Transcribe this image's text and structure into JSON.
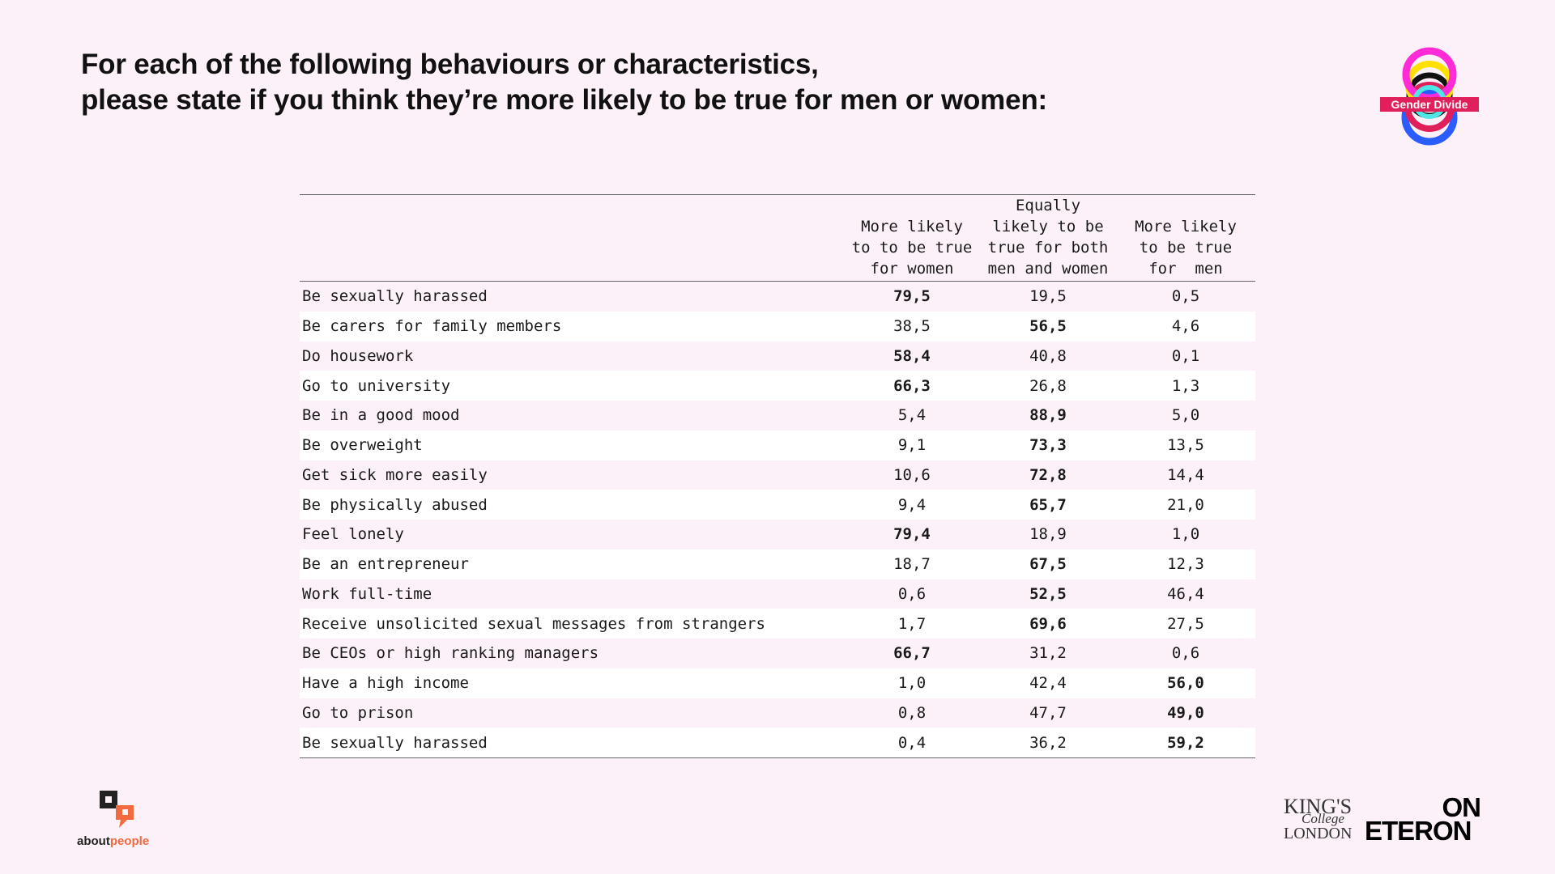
{
  "title": {
    "line1": "For each of the following behaviours or characteristics,",
    "line2": "please state if you think they’re more likely to be true for men or women:"
  },
  "badge": {
    "label": "Gender Divide",
    "icon": "gender-divide-rings-icon",
    "colors": [
      "#ff2bd6",
      "#ffe100",
      "#1e4fff",
      "#e0205a",
      "#50e6e6"
    ]
  },
  "table": {
    "headers": [
      "",
      "More likely\nto to be true\nfor women",
      "Equally\nlikely to be\ntrue for both\nmen and women",
      "More likely\nto be true\nfor  men"
    ],
    "rows": [
      {
        "label": "Be sexually harassed",
        "women": "79,5",
        "both": "19,5",
        "men": "0,5",
        "bold": "women"
      },
      {
        "label": "Be carers for family members",
        "women": "38,5",
        "both": "56,5",
        "men": "4,6",
        "bold": "both"
      },
      {
        "label": "Do housework",
        "women": "58,4",
        "both": "40,8",
        "men": "0,1",
        "bold": "women"
      },
      {
        "label": "Go to university",
        "women": "66,3",
        "both": "26,8",
        "men": "1,3",
        "bold": "women"
      },
      {
        "label": "Be in a good mood",
        "women": "5,4",
        "both": "88,9",
        "men": "5,0",
        "bold": "both"
      },
      {
        "label": "Be overweight",
        "women": "9,1",
        "both": "73,3",
        "men": "13,5",
        "bold": "both"
      },
      {
        "label": "Get sick more easily",
        "women": "10,6",
        "both": "72,8",
        "men": "14,4",
        "bold": "both"
      },
      {
        "label": "Be physically abused",
        "women": "9,4",
        "both": "65,7",
        "men": "21,0",
        "bold": "both"
      },
      {
        "label": "Feel lonely",
        "women": "79,4",
        "both": "18,9",
        "men": "1,0",
        "bold": "women"
      },
      {
        "label": "Be an entrepreneur",
        "women": "18,7",
        "both": "67,5",
        "men": "12,3",
        "bold": "both"
      },
      {
        "label": "Work full-time",
        "women": "0,6",
        "both": "52,5",
        "men": "46,4",
        "bold": "both"
      },
      {
        "label": "Receive unsolicited sexual messages from strangers",
        "women": "1,7",
        "both": "69,6",
        "men": "27,5",
        "bold": "both"
      },
      {
        "label": "Be CEOs or high ranking managers",
        "women": "66,7",
        "both": "31,2",
        "men": "0,6",
        "bold": "women"
      },
      {
        "label": "Have a high income",
        "women": "1,0",
        "both": "42,4",
        "men": "56,0",
        "bold": "men"
      },
      {
        "label": "Go to prison",
        "women": "0,8",
        "both": "47,7",
        "men": "49,0",
        "bold": "men"
      },
      {
        "label": "Be sexually harassed",
        "women": "0,4",
        "both": "36,2",
        "men": "59,2",
        "bold": "men"
      }
    ]
  },
  "footer": {
    "aboutpeople": {
      "about": "about",
      "people": "people",
      "icon": "speech-bubbles-icon",
      "accent": "#f26a3d"
    },
    "kcl": {
      "kings": "KING'S",
      "college": "College",
      "london": "LONDON"
    },
    "eteron": {
      "on": "ON",
      "eteron": "ETERON"
    }
  }
}
